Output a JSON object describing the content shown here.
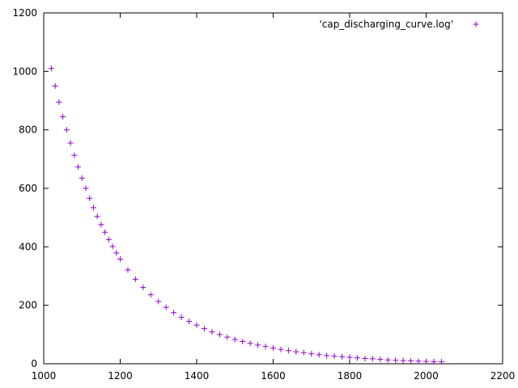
{
  "chart_data": {
    "type": "scatter",
    "title": "",
    "xlabel": "",
    "ylabel": "",
    "xlim": [
      1000,
      2200
    ],
    "ylim": [
      0,
      1200
    ],
    "x_ticks": [
      1000,
      1200,
      1400,
      1600,
      1800,
      2000,
      2200
    ],
    "y_ticks": [
      0,
      200,
      400,
      600,
      800,
      1000,
      1200
    ],
    "grid": false,
    "legend_position": "top-right",
    "marker": "plus",
    "series": [
      {
        "name": "'cap_discharging_curve.log'",
        "color": "#9400d3",
        "x": [
          1020,
          1030,
          1040,
          1050,
          1060,
          1070,
          1080,
          1090,
          1100,
          1110,
          1120,
          1130,
          1140,
          1150,
          1160,
          1170,
          1180,
          1190,
          1200,
          1220,
          1240,
          1260,
          1280,
          1300,
          1320,
          1340,
          1360,
          1380,
          1400,
          1420,
          1440,
          1460,
          1480,
          1500,
          1520,
          1540,
          1560,
          1580,
          1600,
          1620,
          1640,
          1660,
          1680,
          1700,
          1720,
          1740,
          1760,
          1780,
          1800,
          1820,
          1840,
          1860,
          1880,
          1900,
          1920,
          1940,
          1960,
          1980,
          2000,
          2020,
          2040
        ],
        "y": [
          1010,
          950,
          895,
          845,
          800,
          755,
          713,
          673,
          635,
          600,
          566,
          534,
          504,
          476,
          450,
          425,
          401,
          379,
          358,
          321,
          289,
          261,
          236,
          213,
          193,
          175,
          159,
          145,
          132,
          120,
          109,
          100,
          91,
          83,
          76,
          70,
          64,
          59,
          54,
          49,
          45,
          41,
          38,
          34,
          31,
          28,
          26,
          24,
          22,
          20,
          18,
          17,
          15,
          13,
          12,
          11,
          10,
          9,
          8,
          7,
          7
        ]
      }
    ]
  }
}
